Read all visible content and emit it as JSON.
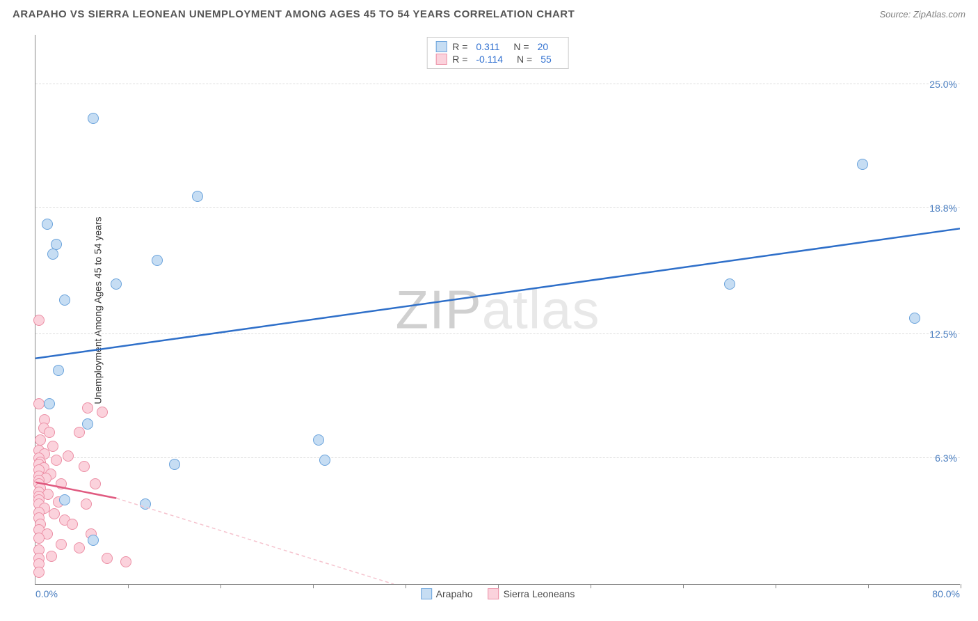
{
  "title": "ARAPAHO VS SIERRA LEONEAN UNEMPLOYMENT AMONG AGES 45 TO 54 YEARS CORRELATION CHART",
  "source_label": "Source: ",
  "source_name": "ZipAtlas.com",
  "y_axis_label": "Unemployment Among Ages 45 to 54 years",
  "watermark_pre": "ZIP",
  "watermark_post": "atlas",
  "chart": {
    "type": "scatter",
    "xlim": [
      0,
      80
    ],
    "ylim": [
      0,
      27.5
    ],
    "x_min_label": "0.0%",
    "x_max_label": "80.0%",
    "y_ticks": [
      6.3,
      12.5,
      18.8,
      25.0
    ],
    "y_tick_labels": [
      "6.3%",
      "12.5%",
      "18.8%",
      "25.0%"
    ],
    "x_ticks": [
      8,
      16,
      24,
      32,
      40,
      48,
      56,
      64,
      72,
      80
    ],
    "grid_color": "#dddddd",
    "background_color": "#ffffff",
    "axis_color": "#888888",
    "tick_label_color": "#4a7ec0",
    "tick_label_fontsize": 14,
    "marker_radius": 8,
    "series": {
      "arapaho": {
        "label": "Arapaho",
        "color_fill": "#c6ddf3",
        "color_stroke": "#6aa3dc",
        "r_label": "R = ",
        "r_value": "0.311",
        "n_label": "N = ",
        "n_value": "20",
        "trend": {
          "x1": 0,
          "y1": 11.3,
          "x2": 80,
          "y2": 17.8,
          "color": "#2e6fc9",
          "width": 2.5,
          "dash": "none"
        },
        "points": [
          [
            5.0,
            23.3
          ],
          [
            14.0,
            19.4
          ],
          [
            1.0,
            18.0
          ],
          [
            1.8,
            17.0
          ],
          [
            1.5,
            16.5
          ],
          [
            10.5,
            16.2
          ],
          [
            2.5,
            14.2
          ],
          [
            7.0,
            15.0
          ],
          [
            60.0,
            15.0
          ],
          [
            71.5,
            21.0
          ],
          [
            76.0,
            13.3
          ],
          [
            2.0,
            10.7
          ],
          [
            1.2,
            9.0
          ],
          [
            4.5,
            8.0
          ],
          [
            24.5,
            7.2
          ],
          [
            12.0,
            6.0
          ],
          [
            9.5,
            4.0
          ],
          [
            5.0,
            2.2
          ],
          [
            25.0,
            6.2
          ],
          [
            2.5,
            4.2
          ]
        ]
      },
      "sierra": {
        "label": "Sierra Leoneans",
        "color_fill": "#fbd2dc",
        "color_stroke": "#ec8fa5",
        "r_label": "R = ",
        "r_value": "-0.114",
        "n_label": "N = ",
        "n_value": "55",
        "trend_solid": {
          "x1": 0,
          "y1": 5.1,
          "x2": 7,
          "y2": 4.3,
          "color": "#e05a80",
          "width": 2.5,
          "dash": "none"
        },
        "trend_dash": {
          "x1": 7,
          "y1": 4.3,
          "x2": 31,
          "y2": 0,
          "color": "#f5c3ce",
          "width": 1.5,
          "dash": "5,4"
        },
        "points": [
          [
            0.3,
            13.2
          ],
          [
            0.3,
            9.0
          ],
          [
            4.5,
            8.8
          ],
          [
            5.8,
            8.6
          ],
          [
            0.8,
            8.2
          ],
          [
            0.7,
            7.8
          ],
          [
            3.8,
            7.6
          ],
          [
            1.2,
            7.6
          ],
          [
            0.4,
            7.2
          ],
          [
            1.5,
            6.9
          ],
          [
            0.3,
            6.7
          ],
          [
            0.8,
            6.5
          ],
          [
            2.8,
            6.4
          ],
          [
            0.3,
            6.3
          ],
          [
            1.8,
            6.2
          ],
          [
            0.4,
            6.1
          ],
          [
            0.3,
            6.0
          ],
          [
            4.2,
            5.9
          ],
          [
            0.7,
            5.8
          ],
          [
            0.3,
            5.7
          ],
          [
            1.3,
            5.5
          ],
          [
            0.3,
            5.4
          ],
          [
            0.9,
            5.3
          ],
          [
            0.3,
            5.2
          ],
          [
            0.3,
            5.0
          ],
          [
            2.2,
            5.0
          ],
          [
            5.2,
            5.0
          ],
          [
            0.4,
            4.8
          ],
          [
            0.3,
            4.6
          ],
          [
            1.1,
            4.5
          ],
          [
            0.3,
            4.4
          ],
          [
            0.3,
            4.2
          ],
          [
            2.0,
            4.1
          ],
          [
            4.4,
            4.0
          ],
          [
            0.3,
            4.0
          ],
          [
            0.8,
            3.8
          ],
          [
            0.3,
            3.6
          ],
          [
            1.6,
            3.5
          ],
          [
            0.3,
            3.3
          ],
          [
            2.5,
            3.2
          ],
          [
            3.2,
            3.0
          ],
          [
            0.4,
            3.0
          ],
          [
            0.3,
            2.7
          ],
          [
            1.0,
            2.5
          ],
          [
            4.8,
            2.5
          ],
          [
            0.3,
            2.3
          ],
          [
            2.2,
            2.0
          ],
          [
            3.8,
            1.8
          ],
          [
            0.3,
            1.7
          ],
          [
            1.4,
            1.4
          ],
          [
            6.2,
            1.3
          ],
          [
            0.3,
            1.3
          ],
          [
            7.8,
            1.1
          ],
          [
            0.3,
            1.0
          ],
          [
            0.3,
            0.6
          ]
        ]
      }
    }
  }
}
